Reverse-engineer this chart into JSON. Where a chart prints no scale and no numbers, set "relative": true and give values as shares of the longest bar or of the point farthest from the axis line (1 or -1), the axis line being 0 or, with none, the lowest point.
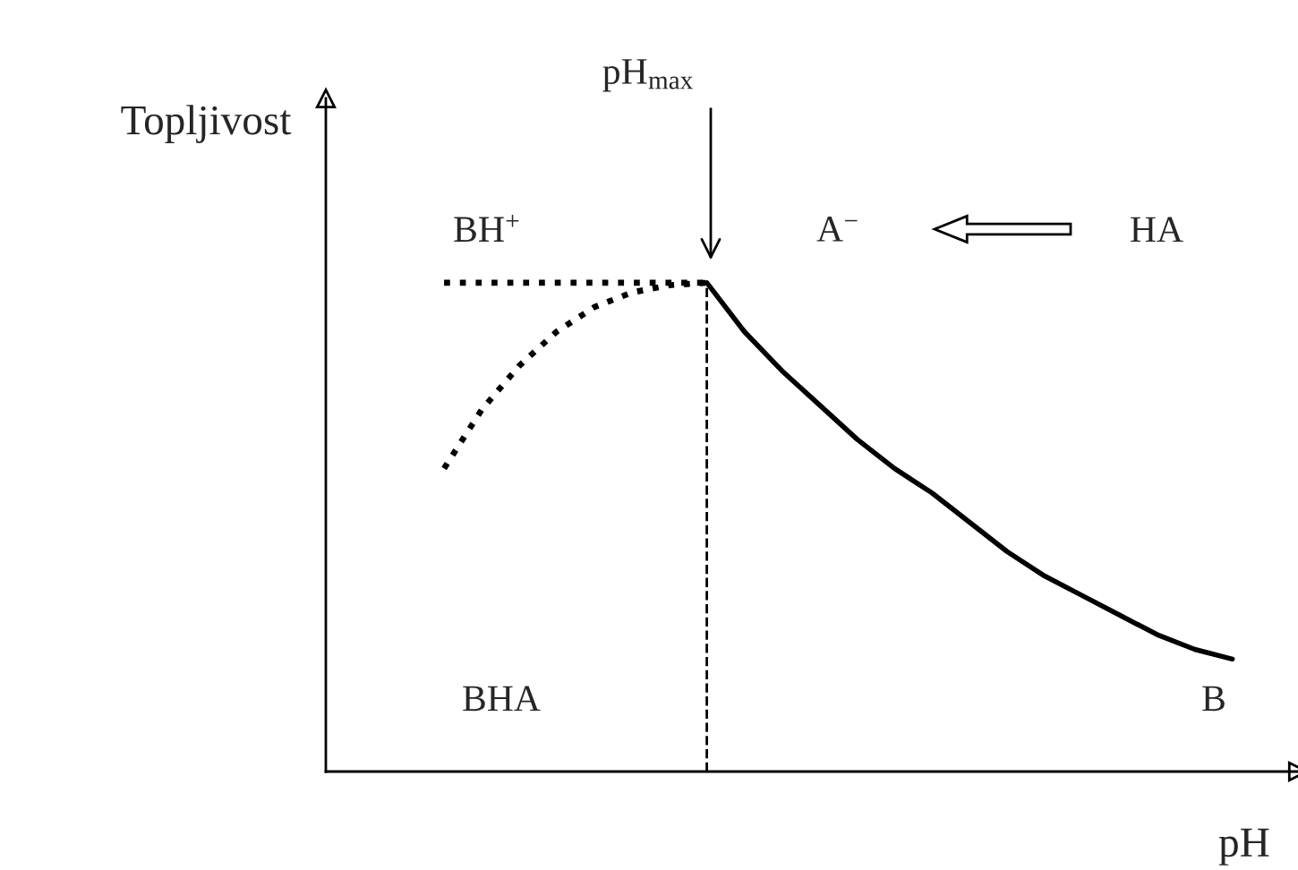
{
  "chart_data": {
    "type": "line",
    "relative": true,
    "xlabel": "pH",
    "ylabel": "Topljivost",
    "categories": [
      null,
      null,
      null,
      null,
      null,
      null,
      null,
      null,
      null,
      null,
      null,
      null,
      null,
      null,
      null,
      null,
      null,
      null,
      null,
      null,
      null,
      null
    ],
    "series": [
      {
        "color": "#000000",
        "line_style": "dotted",
        "values": [
          1.0,
          1.0,
          1.0,
          1.0,
          1.0,
          1.0,
          1.0,
          1.0,
          null,
          null,
          null,
          null,
          null,
          null,
          null,
          null,
          null,
          null,
          null,
          null,
          null,
          null
        ]
      },
      {
        "color": "#000000",
        "line_style": "dotted",
        "values": [
          0.62,
          0.74,
          0.83,
          0.9,
          0.95,
          0.98,
          0.995,
          1.0,
          null,
          null,
          null,
          null,
          null,
          null,
          null,
          null,
          null,
          null,
          null,
          null,
          null,
          null
        ]
      },
      {
        "color": "#000000",
        "line_style": "solid",
        "values": [
          null,
          null,
          null,
          null,
          null,
          null,
          null,
          1.0,
          0.9,
          0.82,
          0.75,
          0.68,
          0.62,
          0.57,
          0.51,
          0.45,
          0.4,
          0.36,
          0.32,
          0.28,
          0.25,
          0.23
        ]
      }
    ],
    "annotations": [
      "pH$_{max}$",
      "BH$^{+}$",
      "A$^{−}$",
      "HA",
      "BHA",
      "B"
    ],
    "legend": false,
    "marker": "none"
  }
}
